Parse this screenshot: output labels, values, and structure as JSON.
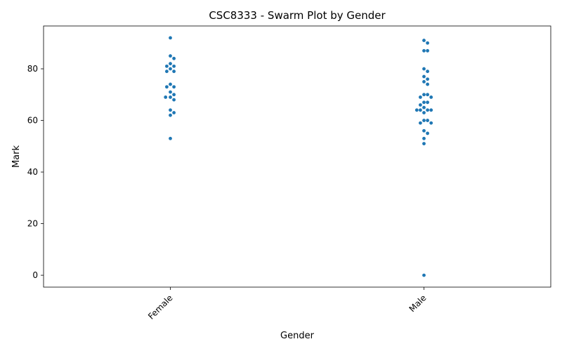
{
  "chart_data": {
    "type": "scatter",
    "title": "CSC8333 - Swarm Plot by Gender",
    "xlabel": "Gender",
    "ylabel": "Mark",
    "categories": [
      "Female",
      "Male"
    ],
    "ylim": [
      -4.6,
      96.6
    ],
    "yticks": [
      0,
      20,
      40,
      60,
      80
    ],
    "grid": false,
    "point_color": "#1f77b4",
    "series": [
      {
        "category": "Female",
        "values": [
          92,
          85,
          84,
          82,
          81,
          81,
          80,
          79,
          79,
          74,
          73,
          73,
          71,
          70,
          69,
          69,
          68,
          64,
          63,
          62,
          53
        ]
      },
      {
        "category": "Male",
        "values": [
          91,
          90,
          87,
          87,
          80,
          79,
          77,
          76,
          75,
          74,
          70,
          70,
          69,
          69,
          67,
          67,
          66,
          65,
          64,
          64,
          64,
          64,
          63,
          60,
          60,
          59,
          59,
          56,
          55,
          53,
          51,
          0
        ]
      }
    ]
  }
}
